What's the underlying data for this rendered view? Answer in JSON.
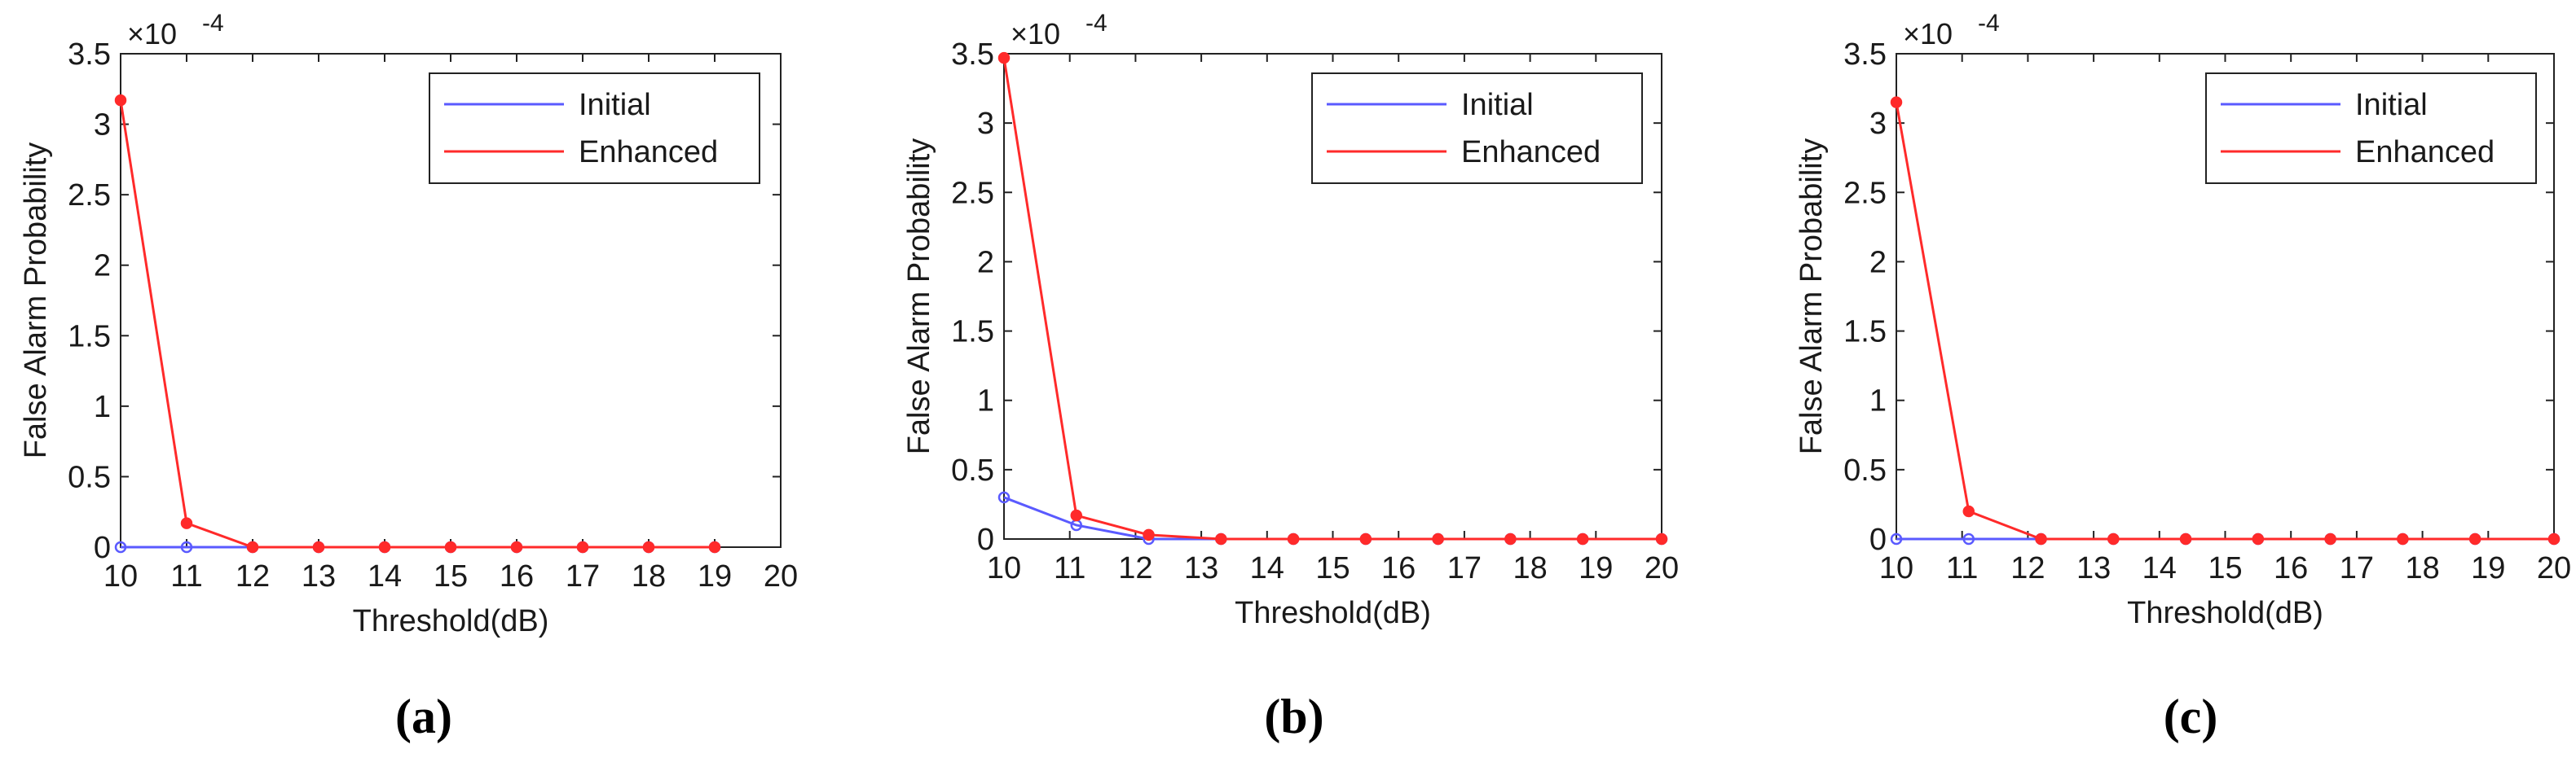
{
  "chart_data": [
    {
      "type": "line",
      "panel_label": "(a)",
      "xlabel": "Threshold(dB)",
      "ylabel": "False Alarm Probability",
      "y_exponent_label": "×10",
      "y_exponent_power": "-4",
      "xlim": [
        10,
        20
      ],
      "ylim": [
        0,
        3.5
      ],
      "xticks": [
        "10",
        "11",
        "12",
        "13",
        "14",
        "15",
        "16",
        "17",
        "18",
        "19",
        "20"
      ],
      "yticks": [
        "0",
        "0.5",
        "1",
        "1.5",
        "2",
        "2.5",
        "3",
        "3.5"
      ],
      "legend_position": "top-right",
      "series": [
        {
          "name": "Initial",
          "color": "#5a5aff",
          "x": [
            10,
            11,
            12,
            13,
            14,
            15,
            16,
            17,
            18,
            19
          ],
          "values": [
            0,
            0,
            0,
            0,
            0,
            0,
            0,
            0,
            0,
            0
          ]
        },
        {
          "name": "Enhanced",
          "color": "#ff2a2a",
          "x": [
            10,
            11,
            12,
            13,
            14,
            15,
            16,
            17,
            18,
            19
          ],
          "values": [
            3.17,
            0.17,
            0,
            0,
            0,
            0,
            0,
            0,
            0,
            0
          ]
        }
      ]
    },
    {
      "type": "line",
      "panel_label": "(b)",
      "xlabel": "Threshold(dB)",
      "ylabel": "False Alarm Probability",
      "y_exponent_label": "×10",
      "y_exponent_power": "-4",
      "xlim": [
        10,
        20
      ],
      "ylim": [
        0,
        3.5
      ],
      "xticks": [
        "10",
        "11",
        "12",
        "13",
        "14",
        "15",
        "16",
        "17",
        "18",
        "19",
        "20"
      ],
      "yticks": [
        "0",
        "0.5",
        "1",
        "1.5",
        "2",
        "2.5",
        "3",
        "3.5"
      ],
      "legend_position": "top-right",
      "series": [
        {
          "name": "Initial",
          "color": "#5a5aff",
          "x": [
            10,
            11.1,
            12.2,
            13.3,
            14.4,
            15.5,
            16.6,
            17.7,
            18.8,
            20
          ],
          "values": [
            0.3,
            0.1,
            0,
            0,
            0,
            0,
            0,
            0,
            0,
            0
          ]
        },
        {
          "name": "Enhanced",
          "color": "#ff2a2a",
          "x": [
            10,
            11.1,
            12.2,
            13.3,
            14.4,
            15.5,
            16.6,
            17.7,
            18.8,
            20
          ],
          "values": [
            3.47,
            0.17,
            0.03,
            0,
            0,
            0,
            0,
            0,
            0,
            0
          ]
        }
      ]
    },
    {
      "type": "line",
      "panel_label": "(c)",
      "xlabel": "Threshold(dB)",
      "ylabel": "False Alarm Probability",
      "y_exponent_label": "×10",
      "y_exponent_power": "-4",
      "xlim": [
        10,
        20
      ],
      "ylim": [
        0,
        3.5
      ],
      "xticks": [
        "10",
        "11",
        "12",
        "13",
        "14",
        "15",
        "16",
        "17",
        "18",
        "19",
        "20"
      ],
      "yticks": [
        "0",
        "0.5",
        "1",
        "1.5",
        "2",
        "2.5",
        "3",
        "3.5"
      ],
      "legend_position": "top-right",
      "series": [
        {
          "name": "Initial",
          "color": "#5a5aff",
          "x": [
            10,
            11.1,
            12.2,
            13.3,
            14.4,
            15.5,
            16.6,
            17.7,
            18.8,
            20
          ],
          "values": [
            0,
            0,
            0,
            0,
            0,
            0,
            0,
            0,
            0,
            0
          ]
        },
        {
          "name": "Enhanced",
          "color": "#ff2a2a",
          "x": [
            10,
            11.1,
            12.2,
            13.3,
            14.4,
            15.5,
            16.6,
            17.7,
            18.8,
            20
          ],
          "values": [
            3.15,
            0.2,
            0,
            0,
            0,
            0,
            0,
            0,
            0,
            0
          ]
        }
      ]
    }
  ]
}
